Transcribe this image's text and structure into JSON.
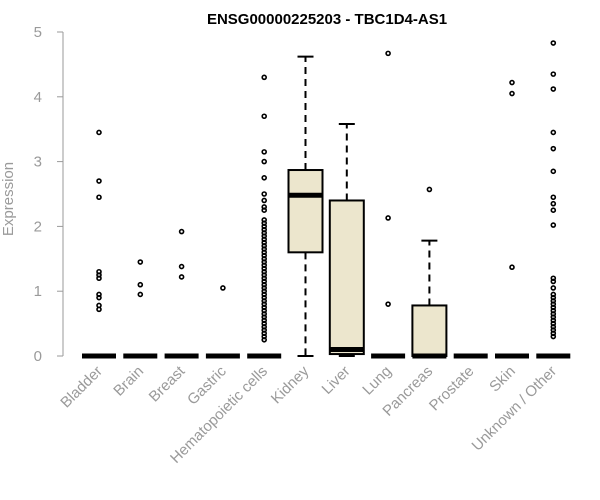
{
  "chart_data": {
    "type": "boxplot",
    "title": "ENSG00000225203 - TBC1D4-AS1",
    "xlabel": "",
    "ylabel": "Expression",
    "ylim": [
      0,
      5
    ],
    "yticks": [
      "0",
      "1",
      "2",
      "3",
      "4",
      "5"
    ],
    "box_fill": "#ece6cd",
    "categories": [
      "Bladder",
      "Brain",
      "Breast",
      "Gastric",
      "Hematopoietic cells",
      "Kidney",
      "Liver",
      "Lung",
      "Pancreas",
      "Prostate",
      "Skin",
      "Unknown / Other"
    ],
    "series": [
      {
        "name": "Bladder",
        "min": 0,
        "q1": 0,
        "median": 0,
        "q3": 0,
        "max": 0,
        "outliers": [
          3.45,
          2.7,
          2.45,
          1.3,
          1.25,
          1.2,
          0.95,
          0.9,
          0.78,
          0.72
        ]
      },
      {
        "name": "Brain",
        "min": 0,
        "q1": 0,
        "median": 0,
        "q3": 0,
        "max": 0,
        "outliers": [
          1.45,
          1.1,
          0.95
        ]
      },
      {
        "name": "Breast",
        "min": 0,
        "q1": 0,
        "median": 0,
        "q3": 0,
        "max": 0,
        "outliers": [
          1.92,
          1.38,
          1.22
        ]
      },
      {
        "name": "Gastric",
        "min": 0,
        "q1": 0,
        "median": 0,
        "q3": 0,
        "max": 0,
        "outliers": [
          1.05
        ]
      },
      {
        "name": "Hematopoietic cells",
        "min": 0,
        "q1": 0,
        "median": 0,
        "q3": 0,
        "max": 0,
        "outliers": [
          4.3,
          3.7,
          3.15,
          3.0,
          2.75,
          2.5,
          2.4,
          2.3,
          2.25,
          2.1,
          2.05,
          2.0,
          1.95,
          1.9,
          1.85,
          1.8,
          1.75,
          1.7,
          1.65,
          1.6,
          1.55,
          1.5,
          1.45,
          1.4,
          1.35,
          1.3,
          1.25,
          1.2,
          1.15,
          1.1,
          1.05,
          1.0,
          0.95,
          0.9,
          0.85,
          0.8,
          0.75,
          0.7,
          0.65,
          0.6,
          0.55,
          0.5,
          0.45,
          0.4,
          0.35,
          0.3,
          0.25
        ]
      },
      {
        "name": "Kidney",
        "min": 0,
        "q1": 1.6,
        "median": 2.48,
        "q3": 2.87,
        "max": 4.62,
        "outliers": []
      },
      {
        "name": "Liver",
        "min": 0,
        "q1": 0.03,
        "median": 0.1,
        "q3": 2.4,
        "max": 3.58,
        "outliers": []
      },
      {
        "name": "Lung",
        "min": 0,
        "q1": 0,
        "median": 0,
        "q3": 0,
        "max": 0,
        "outliers": [
          4.67,
          2.13,
          0.8
        ]
      },
      {
        "name": "Pancreas",
        "min": 0,
        "q1": 0,
        "median": 0,
        "q3": 0.78,
        "max": 1.78,
        "outliers": [
          2.57
        ]
      },
      {
        "name": "Prostate",
        "min": 0,
        "q1": 0,
        "median": 0,
        "q3": 0,
        "max": 0,
        "outliers": []
      },
      {
        "name": "Skin",
        "min": 0,
        "q1": 0,
        "median": 0,
        "q3": 0,
        "max": 0,
        "outliers": [
          4.22,
          4.05,
          1.37
        ]
      },
      {
        "name": "Unknown / Other",
        "min": 0,
        "q1": 0,
        "median": 0,
        "q3": 0,
        "max": 0,
        "outliers": [
          4.83,
          4.35,
          4.12,
          3.45,
          3.2,
          2.85,
          2.45,
          2.35,
          2.25,
          2.02,
          1.2,
          1.15,
          1.05,
          0.95,
          0.9,
          0.85,
          0.8,
          0.75,
          0.7,
          0.65,
          0.6,
          0.55,
          0.5,
          0.45,
          0.4,
          0.35,
          0.3
        ]
      }
    ]
  }
}
